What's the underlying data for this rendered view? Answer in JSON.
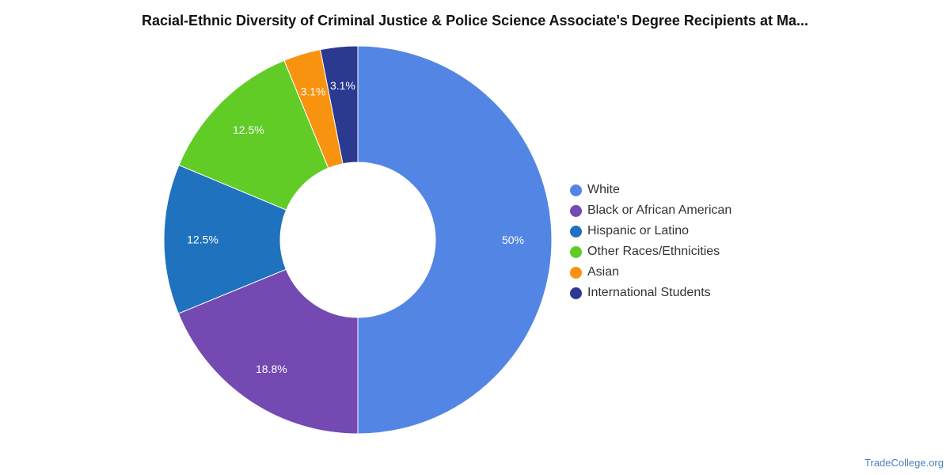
{
  "chart_data": {
    "type": "pie",
    "title": "Racial-Ethnic Diversity of Criminal Justice & Police Science Associate's Degree Recipients at Ma...",
    "donut": true,
    "legend_position": "right",
    "slices": [
      {
        "name": "White",
        "value": 50,
        "label": "50%",
        "color": "#5386e4"
      },
      {
        "name": "Black or African American",
        "value": 18.8,
        "label": "18.8%",
        "color": "#7449b2"
      },
      {
        "name": "Hispanic or Latino",
        "value": 12.5,
        "label": "12.5%",
        "color": "#1f72bd"
      },
      {
        "name": "Other Races/Ethnicities",
        "value": 12.5,
        "label": "12.5%",
        "color": "#62cc27"
      },
      {
        "name": "Asian",
        "value": 3.1,
        "label": "3.1%",
        "color": "#f7930f"
      },
      {
        "name": "International Students",
        "value": 3.1,
        "label": "3.1%",
        "color": "#2c3991"
      }
    ]
  },
  "source_link": "TradeCollege.org"
}
